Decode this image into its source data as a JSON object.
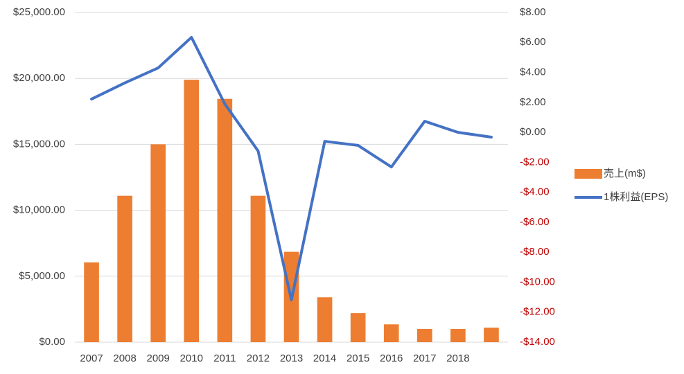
{
  "chart_data": {
    "type": "bar_line",
    "categories": [
      "2007",
      "2008",
      "2009",
      "2010",
      "2011",
      "2012",
      "2013",
      "2014",
      "2015",
      "2016",
      "2017",
      "2018",
      null
    ],
    "series": [
      {
        "name": "売上(m$)",
        "type": "bar",
        "color": "#ed7d31",
        "axis": "y",
        "values": [
          6050,
          11100,
          15000,
          19900,
          18450,
          11100,
          6850,
          3400,
          2200,
          1350,
          1000,
          1000,
          1100
        ]
      },
      {
        "name": "1株利益(EPS)",
        "type": "line",
        "color": "#4472c4",
        "axis": "y2",
        "values": [
          2.22,
          3.3,
          4.3,
          6.34,
          1.9,
          -1.24,
          -11.18,
          -0.6,
          -0.87,
          -2.31,
          0.74,
          0.0,
          -0.32
        ]
      }
    ],
    "ylim": [
      0,
      25000
    ],
    "yticks": [
      {
        "value": 0,
        "label": "$0.00"
      },
      {
        "value": 5000,
        "label": "$5,000.00"
      },
      {
        "value": 10000,
        "label": "$10,000.00"
      },
      {
        "value": 15000,
        "label": "$15,000.00"
      },
      {
        "value": 20000,
        "label": "$20,000.00"
      },
      {
        "value": 25000,
        "label": "$25,000.00"
      }
    ],
    "y2lim": [
      -14,
      8
    ],
    "y2ticks": [
      {
        "value": -14,
        "label": "-$14.00"
      },
      {
        "value": -12,
        "label": "-$12.00"
      },
      {
        "value": -10,
        "label": "-$10.00"
      },
      {
        "value": -8,
        "label": "-$8.00"
      },
      {
        "value": -6,
        "label": "-$6.00"
      },
      {
        "value": -4,
        "label": "-$4.00"
      },
      {
        "value": -2,
        "label": "-$2.00"
      },
      {
        "value": 0,
        "label": "$0.00"
      },
      {
        "value": 2,
        "label": "$2.00"
      },
      {
        "value": 4,
        "label": "$4.00"
      },
      {
        "value": 6,
        "label": "$6.00"
      },
      {
        "value": 8,
        "label": "$8.00"
      }
    ],
    "y2_negative_color": "#c00000",
    "grid": true,
    "legend": "right"
  }
}
